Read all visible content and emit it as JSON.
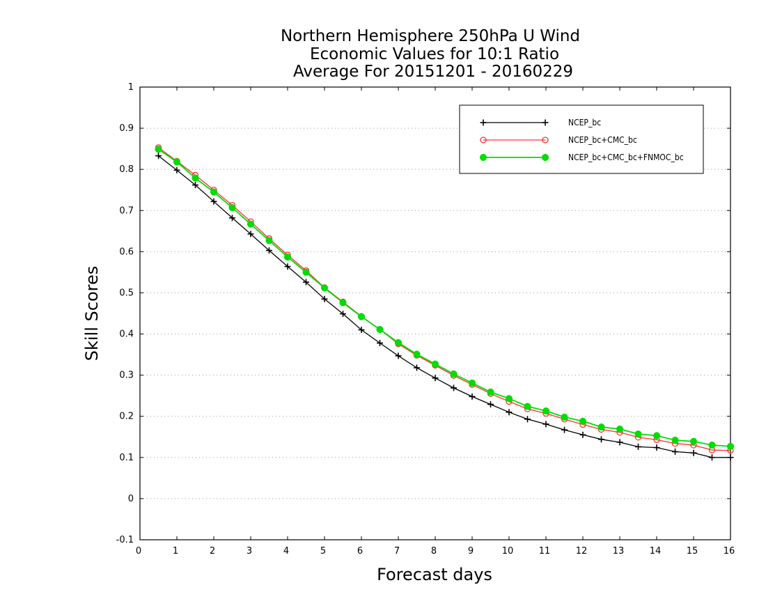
{
  "chart_data": {
    "type": "line",
    "title_lines": [
      "Northern Hemisphere 250hPa U Wind",
      "Economic Values for 10:1 Ratio",
      "Average For 20151201 - 20160229"
    ],
    "xlabel": "Forecast days",
    "ylabel": "Skill Scores",
    "xlim": [
      0,
      16
    ],
    "ylim": [
      -0.1,
      1
    ],
    "xticks": [
      0,
      1,
      2,
      3,
      4,
      5,
      6,
      7,
      8,
      9,
      10,
      11,
      12,
      13,
      14,
      15,
      16
    ],
    "xtick_labels": [
      "0",
      "1",
      "2",
      "3",
      "4",
      "5",
      "6",
      "7",
      "8",
      "9",
      "10",
      "11",
      "12",
      "13",
      "14",
      "15",
      "16"
    ],
    "yticks": [
      -0.1,
      0,
      0.1,
      0.2,
      0.3,
      0.4,
      0.5,
      0.6,
      0.7,
      0.8,
      0.9,
      1
    ],
    "ytick_labels": [
      "-0.1",
      "0",
      "0.1",
      "0.2",
      "0.3",
      "0.4",
      "0.5",
      "0.6",
      "0.7",
      "0.8",
      "0.9",
      "1"
    ],
    "grid": "horizontal-dotted",
    "legend_position": "top-right",
    "x": [
      0.5,
      1,
      1.5,
      2,
      2.5,
      3,
      3.5,
      4,
      4.5,
      5,
      5.5,
      6,
      6.5,
      7,
      7.5,
      8,
      8.5,
      9,
      9.5,
      10,
      10.5,
      11,
      11.5,
      12,
      12.5,
      13,
      13.5,
      14,
      14.5,
      15,
      15.5,
      16
    ],
    "series": [
      {
        "name": "NCEP_bc",
        "color": "#000000",
        "marker": "plus",
        "values": [
          0.833,
          0.798,
          0.762,
          0.722,
          0.682,
          0.643,
          0.603,
          0.564,
          0.526,
          0.485,
          0.449,
          0.41,
          0.378,
          0.347,
          0.318,
          0.293,
          0.269,
          0.248,
          0.229,
          0.21,
          0.193,
          0.181,
          0.167,
          0.155,
          0.144,
          0.137,
          0.126,
          0.124,
          0.114,
          0.111,
          0.1,
          0.1
        ]
      },
      {
        "name": "NCEP_bc+CMC_bc",
        "color": "#ff3030",
        "marker": "open-circle",
        "values": [
          0.853,
          0.82,
          0.786,
          0.75,
          0.713,
          0.673,
          0.632,
          0.592,
          0.554,
          0.513,
          0.478,
          0.443,
          0.411,
          0.376,
          0.348,
          0.324,
          0.299,
          0.277,
          0.255,
          0.236,
          0.218,
          0.207,
          0.193,
          0.18,
          0.168,
          0.161,
          0.149,
          0.143,
          0.134,
          0.13,
          0.118,
          0.117
        ]
      },
      {
        "name": "NCEP_bc+CMC_bc+FNMOC_bc",
        "color": "#00dd00",
        "marker": "filled-circle",
        "values": [
          0.849,
          0.818,
          0.779,
          0.745,
          0.707,
          0.667,
          0.627,
          0.587,
          0.55,
          0.512,
          0.476,
          0.442,
          0.411,
          0.379,
          0.351,
          0.327,
          0.303,
          0.281,
          0.259,
          0.243,
          0.224,
          0.213,
          0.198,
          0.188,
          0.174,
          0.169,
          0.157,
          0.153,
          0.142,
          0.139,
          0.13,
          0.127
        ]
      }
    ]
  }
}
